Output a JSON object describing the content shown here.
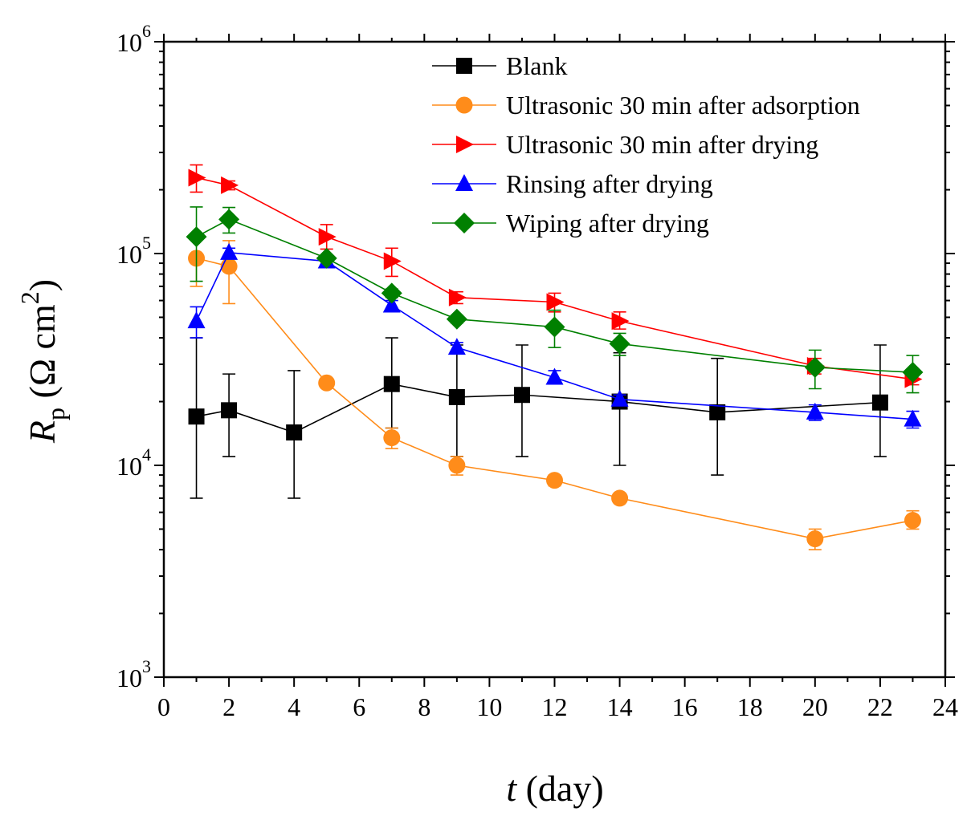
{
  "chart_data": {
    "type": "line",
    "title": "",
    "xlabel": {
      "var": "t",
      "unit": " (day)"
    },
    "ylabel": {
      "var": "R",
      "sub": "p",
      "unit_pre": " (Ω cm",
      "sup": "2",
      "unit_post": ")"
    },
    "xlim": [
      0,
      24
    ],
    "ylim": [
      1000,
      1000000
    ],
    "yscale": "log",
    "xticks": [
      0,
      2,
      4,
      6,
      8,
      10,
      12,
      14,
      16,
      18,
      20,
      22,
      24
    ],
    "yticks": [
      {
        "value": 1000,
        "base": "10",
        "exp": "3"
      },
      {
        "value": 10000,
        "base": "10",
        "exp": "4"
      },
      {
        "value": 100000,
        "base": "10",
        "exp": "5"
      },
      {
        "value": 1000000,
        "base": "10",
        "exp": "6"
      }
    ],
    "legend_position": "top-right",
    "series": [
      {
        "name": "Blank",
        "color": "#000000",
        "marker": "square",
        "x": [
          1,
          2,
          4,
          7,
          9,
          11,
          14,
          17,
          22
        ],
        "y": [
          17000,
          18200,
          14300,
          24200,
          21000,
          21500,
          20000,
          17800,
          19800
        ],
        "err_low": [
          7000,
          11000,
          7000,
          15000,
          11000,
          11000,
          10000,
          9000,
          11000
        ],
        "err_high": [
          40000,
          27000,
          28000,
          40000,
          37000,
          37000,
          34000,
          32000,
          37000
        ]
      },
      {
        "name": "Ultrasonic 30 min after adsorption",
        "color": "#ff8c1a",
        "marker": "circle",
        "x": [
          1,
          2,
          5,
          7,
          9,
          12,
          14,
          20,
          23
        ],
        "y": [
          95000,
          87000,
          24500,
          13500,
          10000,
          8500,
          7000,
          4500,
          5500
        ],
        "err_low": [
          70000,
          58000,
          23500,
          12000,
          9000,
          8000,
          6700,
          4000,
          5000
        ],
        "err_high": [
          99000,
          115000,
          25500,
          15000,
          11000,
          9000,
          7300,
          5000,
          6100
        ]
      },
      {
        "name": "Ultrasonic 30 min after drying",
        "color": "#ff0000",
        "marker": "triangle-right",
        "x": [
          1,
          2,
          5,
          7,
          9,
          12,
          14,
          20,
          23
        ],
        "y": [
          228000,
          210000,
          120000,
          92000,
          62000,
          59000,
          48000,
          29500,
          25500
        ],
        "err_low": [
          195000,
          200000,
          105000,
          78000,
          58000,
          53000,
          44000,
          27000,
          24000
        ],
        "err_high": [
          262000,
          220000,
          137000,
          106000,
          66000,
          65000,
          53000,
          32000,
          27000
        ]
      },
      {
        "name": "Rinsing after drying",
        "color": "#0000ff",
        "marker": "triangle-up",
        "x": [
          1,
          2,
          5,
          7,
          9,
          12,
          14,
          20,
          23
        ],
        "y": [
          48000,
          101000,
          92000,
          57000,
          36000,
          26000,
          20500,
          17800,
          16500
        ],
        "err_low": [
          40000,
          96000,
          87000,
          54000,
          34000,
          24500,
          19500,
          16300,
          15000
        ],
        "err_high": [
          56000,
          106000,
          97000,
          60000,
          38000,
          28000,
          21500,
          19300,
          18000
        ]
      },
      {
        "name": "Wiping after drying",
        "color": "#008000",
        "marker": "diamond",
        "x": [
          1,
          2,
          5,
          7,
          9,
          12,
          14,
          20,
          23
        ],
        "y": [
          120000,
          145000,
          95000,
          65000,
          49000,
          45000,
          37500,
          29000,
          27500
        ],
        "err_low": [
          74000,
          125000,
          92000,
          62000,
          47000,
          36000,
          33000,
          23000,
          22000
        ],
        "err_high": [
          166000,
          165000,
          98000,
          68000,
          51000,
          54000,
          42000,
          35000,
          33000
        ]
      }
    ]
  }
}
